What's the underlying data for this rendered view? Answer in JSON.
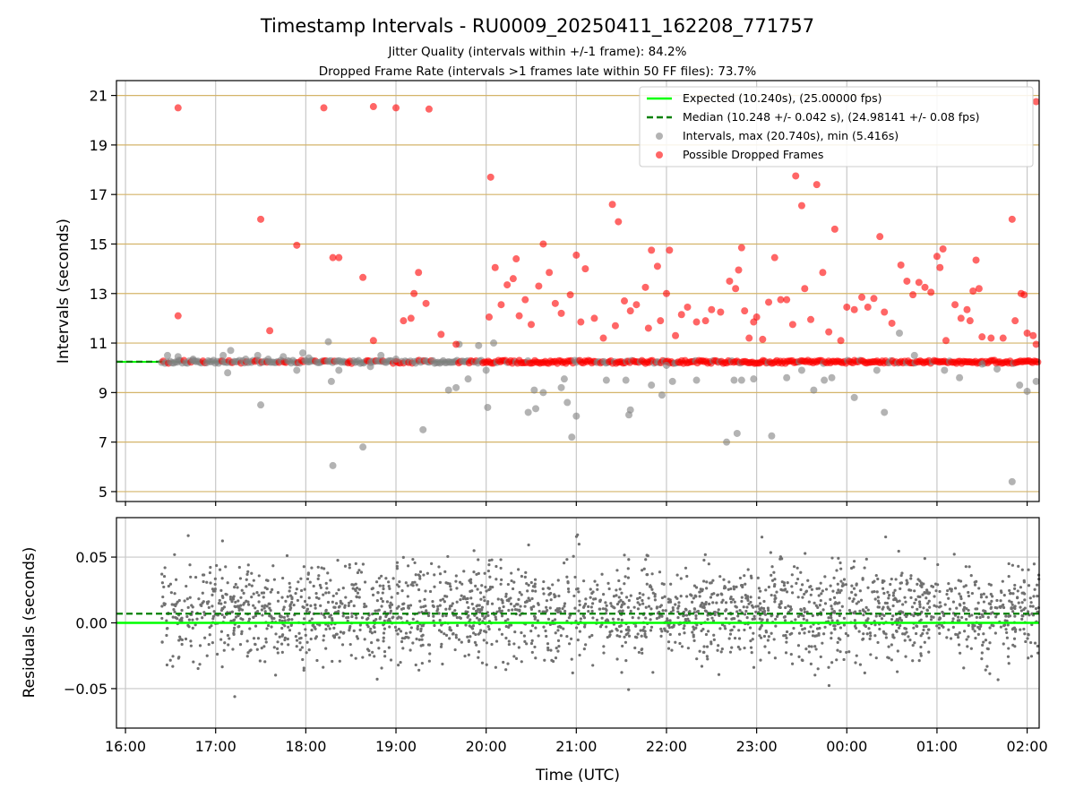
{
  "figure": {
    "title": "Timestamp Intervals - RU0009_20250411_162208_771757",
    "subtitle_1": "Jitter Quality (intervals within +/-1 frame): 84.2%",
    "subtitle_2": "Dropped Frame Rate (intervals >1 frames late within 50 FF files): 73.7%",
    "xlabel": "Time (UTC)"
  },
  "chart_data": [
    {
      "type": "scatter",
      "name": "intervals",
      "ylabel": "Intervals (seconds)",
      "xlim": [
        "15:54",
        "02:08"
      ],
      "ylim": [
        4.6,
        21.6
      ],
      "yticks": [
        "5",
        "7",
        "9",
        "11",
        "13",
        "15",
        "17",
        "19",
        "21"
      ],
      "ytick_values": [
        5,
        7,
        9,
        11,
        13,
        15,
        17,
        19,
        21
      ],
      "grid": "x-gray, y-gold",
      "legend": {
        "placement": "top-right",
        "entries": [
          "Expected (10.240s), (25.00000 fps)",
          "Median (10.248 +/- 0.042 s), (24.98141 +/- 0.08 fps)",
          "Intervals, max (20.740s), min (5.416s)",
          "Possible Dropped Frames"
        ]
      },
      "expected_line": 10.24,
      "median_line": 10.248,
      "colors": {
        "expected": "#00ff00",
        "median": "#008000",
        "intervals": "#808080",
        "dropped": "#ff0000",
        "ygrid": "#d4b469"
      },
      "baseline": {
        "x_start": "16:24",
        "x_end": "02:08",
        "y": 10.24
      },
      "dropped_points": [
        [
          "16:35",
          20.5
        ],
        [
          "16:35",
          12.1
        ],
        [
          "17:30",
          16.0
        ],
        [
          "17:36",
          11.5
        ],
        [
          "17:54",
          14.95
        ],
        [
          "18:12",
          20.5
        ],
        [
          "18:18",
          14.45
        ],
        [
          "18:22",
          14.45
        ],
        [
          "18:38",
          13.65
        ],
        [
          "18:45",
          20.55
        ],
        [
          "18:45",
          11.1
        ],
        [
          "19:00",
          20.5
        ],
        [
          "19:05",
          11.9
        ],
        [
          "19:10",
          12.0
        ],
        [
          "19:12",
          13.0
        ],
        [
          "19:15",
          13.85
        ],
        [
          "19:20",
          12.6
        ],
        [
          "19:22",
          20.45
        ],
        [
          "19:30",
          11.35
        ],
        [
          "19:40",
          10.95
        ],
        [
          "20:02",
          12.05
        ],
        [
          "20:03",
          17.7
        ],
        [
          "20:06",
          14.05
        ],
        [
          "20:10",
          12.55
        ],
        [
          "20:14",
          13.35
        ],
        [
          "20:18",
          13.6
        ],
        [
          "20:20",
          14.4
        ],
        [
          "20:22",
          12.1
        ],
        [
          "20:26",
          12.75
        ],
        [
          "20:30",
          11.75
        ],
        [
          "20:35",
          13.3
        ],
        [
          "20:38",
          15.0
        ],
        [
          "20:42",
          13.85
        ],
        [
          "20:46",
          12.6
        ],
        [
          "20:50",
          12.2
        ],
        [
          "20:56",
          12.95
        ],
        [
          "21:00",
          14.55
        ],
        [
          "21:03",
          11.85
        ],
        [
          "21:06",
          14.0
        ],
        [
          "21:12",
          12.0
        ],
        [
          "21:18",
          11.2
        ],
        [
          "21:24",
          16.6
        ],
        [
          "21:26",
          11.7
        ],
        [
          "21:28",
          15.9
        ],
        [
          "21:32",
          12.7
        ],
        [
          "21:36",
          12.3
        ],
        [
          "21:40",
          12.55
        ],
        [
          "21:46",
          13.25
        ],
        [
          "21:48",
          11.6
        ],
        [
          "21:50",
          14.75
        ],
        [
          "21:54",
          14.1
        ],
        [
          "21:56",
          11.9
        ],
        [
          "22:00",
          13.0
        ],
        [
          "22:02",
          14.75
        ],
        [
          "22:06",
          11.3
        ],
        [
          "22:10",
          12.15
        ],
        [
          "22:14",
          12.45
        ],
        [
          "22:20",
          11.85
        ],
        [
          "22:26",
          11.9
        ],
        [
          "22:30",
          12.35
        ],
        [
          "22:36",
          12.25
        ],
        [
          "22:42",
          13.5
        ],
        [
          "22:46",
          13.2
        ],
        [
          "22:48",
          13.95
        ],
        [
          "22:50",
          14.85
        ],
        [
          "22:52",
          12.3
        ],
        [
          "22:55",
          11.2
        ],
        [
          "22:58",
          11.85
        ],
        [
          "23:00",
          12.05
        ],
        [
          "23:04",
          11.15
        ],
        [
          "23:08",
          12.65
        ],
        [
          "23:12",
          14.45
        ],
        [
          "23:16",
          12.75
        ],
        [
          "23:20",
          12.75
        ],
        [
          "23:24",
          11.75
        ],
        [
          "23:26",
          17.75
        ],
        [
          "23:30",
          16.55
        ],
        [
          "23:32",
          13.2
        ],
        [
          "23:36",
          11.95
        ],
        [
          "23:40",
          17.4
        ],
        [
          "23:44",
          13.85
        ],
        [
          "23:48",
          11.45
        ],
        [
          "23:52",
          15.6
        ],
        [
          "23:56",
          11.1
        ],
        [
          "24:00",
          12.45
        ],
        [
          "24:05",
          12.35
        ],
        [
          "24:10",
          12.85
        ],
        [
          "24:14",
          12.45
        ],
        [
          "24:18",
          12.8
        ],
        [
          "24:22",
          15.3
        ],
        [
          "24:25",
          12.25
        ],
        [
          "24:30",
          11.8
        ],
        [
          "24:36",
          14.15
        ],
        [
          "24:40",
          13.5
        ],
        [
          "24:44",
          12.95
        ],
        [
          "24:48",
          13.45
        ],
        [
          "24:52",
          13.25
        ],
        [
          "24:56",
          13.05
        ],
        [
          "25:00",
          14.5
        ],
        [
          "25:02",
          14.05
        ],
        [
          "25:04",
          14.8
        ],
        [
          "25:06",
          11.1
        ],
        [
          "25:12",
          12.55
        ],
        [
          "25:16",
          12.0
        ],
        [
          "25:20",
          12.35
        ],
        [
          "25:22",
          11.9
        ],
        [
          "25:24",
          13.1
        ],
        [
          "25:26",
          14.35
        ],
        [
          "25:28",
          13.2
        ],
        [
          "25:30",
          11.25
        ],
        [
          "25:36",
          11.2
        ],
        [
          "25:44",
          11.2
        ],
        [
          "25:50",
          16.0
        ],
        [
          "25:52",
          11.9
        ],
        [
          "25:56",
          13.0
        ],
        [
          "25:58",
          12.95
        ],
        [
          "26:00",
          11.4
        ],
        [
          "26:04",
          11.3
        ],
        [
          "26:06",
          20.75
        ],
        [
          "26:06",
          10.95
        ]
      ],
      "interval_points": [
        [
          "16:28",
          10.5
        ],
        [
          "16:35",
          10.45
        ],
        [
          "16:45",
          10.35
        ],
        [
          "17:05",
          10.5
        ],
        [
          "17:08",
          9.8
        ],
        [
          "17:10",
          10.7
        ],
        [
          "17:20",
          10.35
        ],
        [
          "17:28",
          10.5
        ],
        [
          "17:30",
          8.5
        ],
        [
          "17:35",
          10.35
        ],
        [
          "17:45",
          10.45
        ],
        [
          "17:54",
          9.9
        ],
        [
          "17:58",
          10.6
        ],
        [
          "18:02",
          10.4
        ],
        [
          "18:15",
          11.05
        ],
        [
          "18:17",
          9.45
        ],
        [
          "18:22",
          9.9
        ],
        [
          "18:18",
          6.05
        ],
        [
          "18:38",
          6.8
        ],
        [
          "18:43",
          10.05
        ],
        [
          "18:50",
          10.5
        ],
        [
          "19:00",
          10.35
        ],
        [
          "19:18",
          7.5
        ],
        [
          "19:35",
          9.1
        ],
        [
          "19:40",
          9.2
        ],
        [
          "19:42",
          10.95
        ],
        [
          "19:48",
          9.55
        ],
        [
          "19:55",
          10.9
        ],
        [
          "20:00",
          9.9
        ],
        [
          "20:01",
          8.4
        ],
        [
          "20:05",
          11.0
        ],
        [
          "20:28",
          8.2
        ],
        [
          "20:32",
          9.1
        ],
        [
          "20:33",
          8.35
        ],
        [
          "20:38",
          9.0
        ],
        [
          "20:50",
          9.2
        ],
        [
          "20:52",
          9.55
        ],
        [
          "20:54",
          8.6
        ],
        [
          "20:57",
          7.2
        ],
        [
          "21:00",
          8.05
        ],
        [
          "21:20",
          9.5
        ],
        [
          "21:33",
          9.5
        ],
        [
          "21:35",
          8.1
        ],
        [
          "21:36",
          8.3
        ],
        [
          "21:50",
          9.3
        ],
        [
          "21:57",
          8.9
        ],
        [
          "22:00",
          10.1
        ],
        [
          "22:04",
          9.45
        ],
        [
          "22:20",
          9.5
        ],
        [
          "22:40",
          7.0
        ],
        [
          "22:45",
          9.5
        ],
        [
          "22:47",
          7.35
        ],
        [
          "22:50",
          9.5
        ],
        [
          "22:58",
          9.55
        ],
        [
          "23:10",
          7.25
        ],
        [
          "23:20",
          9.6
        ],
        [
          "23:30",
          9.9
        ],
        [
          "23:38",
          9.1
        ],
        [
          "23:45",
          9.5
        ],
        [
          "23:50",
          9.6
        ],
        [
          "24:05",
          8.8
        ],
        [
          "24:20",
          9.9
        ],
        [
          "24:25",
          8.2
        ],
        [
          "24:35",
          11.4
        ],
        [
          "24:45",
          10.5
        ],
        [
          "25:05",
          9.9
        ],
        [
          "25:15",
          9.6
        ],
        [
          "25:30",
          10.15
        ],
        [
          "25:40",
          9.95
        ],
        [
          "25:50",
          5.4
        ],
        [
          "25:55",
          9.3
        ],
        [
          "26:00",
          9.05
        ],
        [
          "26:06",
          9.45
        ]
      ]
    },
    {
      "type": "scatter",
      "name": "residuals",
      "ylabel": "Residuals (seconds)",
      "xlim": [
        "15:54",
        "02:08"
      ],
      "ylim": [
        -0.08,
        0.08
      ],
      "yticks": [
        "−0.05",
        "0.00",
        "0.05"
      ],
      "ytick_values": [
        -0.05,
        0.0,
        0.05
      ],
      "xticks": [
        "16:00",
        "17:00",
        "18:00",
        "19:00",
        "20:00",
        "21:00",
        "22:00",
        "23:00",
        "00:00",
        "01:00",
        "02:00"
      ],
      "grid": "x-gray, y-gray",
      "expected_line": 0.0,
      "median_line": 0.007,
      "colors": {
        "expected": "#00ff00",
        "median": "#008000",
        "points": "#707070"
      },
      "density": {
        "x_start": "16:24",
        "x_end": "02:08",
        "center": 0.007,
        "spread": 0.018,
        "approx_points": 2400
      }
    }
  ]
}
